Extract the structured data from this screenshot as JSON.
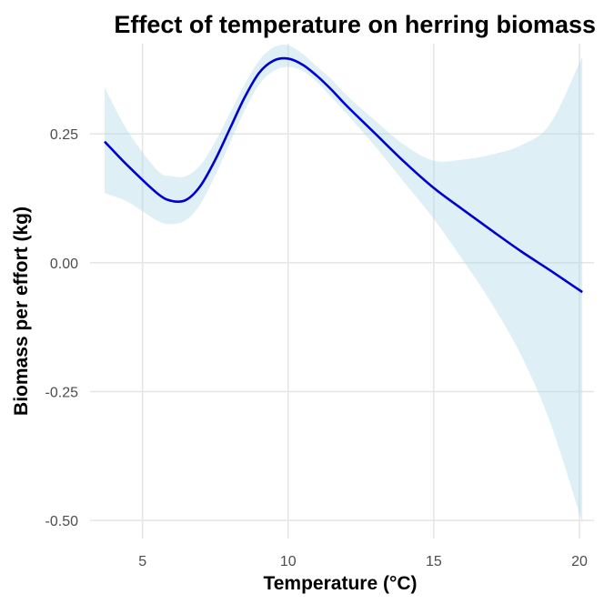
{
  "chart_data": {
    "type": "line",
    "title": "Effect of temperature on herring biomass",
    "xlabel": "Temperature (°C)",
    "ylabel": "Biomass per effort (kg)",
    "xlim": [
      3.2,
      20.5
    ],
    "ylim": [
      -0.535,
      0.425
    ],
    "x_ticks": [
      5,
      10,
      15,
      20
    ],
    "x_tick_labels": [
      "5",
      "10",
      "15",
      "20"
    ],
    "y_ticks": [
      -0.5,
      -0.25,
      0.0,
      0.25
    ],
    "y_tick_labels": [
      "-0.50",
      "-0.25",
      "0.00",
      "0.25"
    ],
    "grid": true,
    "legend": "none",
    "colors": {
      "line": "#0000cd",
      "ribbon": "#add8e6",
      "ribbon_opacity": 0.4,
      "grid": "#e6e6e6"
    },
    "series": [
      {
        "x": [
          3.7,
          4.5,
          5.5,
          6.0,
          6.5,
          7.0,
          7.5,
          8.0,
          8.5,
          9.0,
          9.5,
          10.0,
          10.5,
          11.0,
          11.5,
          12.0,
          13.0,
          14.0,
          15.0,
          16.0,
          17.0,
          18.0,
          19.0,
          20.1
        ],
        "y": [
          0.235,
          0.188,
          0.135,
          0.12,
          0.122,
          0.15,
          0.2,
          0.26,
          0.32,
          0.368,
          0.392,
          0.396,
          0.384,
          0.362,
          0.335,
          0.305,
          0.25,
          0.195,
          0.145,
          0.103,
          0.062,
          0.022,
          -0.015,
          -0.057
        ],
        "lower": [
          0.135,
          0.118,
          0.082,
          0.075,
          0.083,
          0.115,
          0.17,
          0.232,
          0.295,
          0.345,
          0.372,
          0.38,
          0.372,
          0.35,
          0.32,
          0.29,
          0.225,
          0.155,
          0.085,
          0.005,
          -0.08,
          -0.18,
          -0.31,
          -0.505
        ],
        "upper": [
          0.34,
          0.255,
          0.18,
          0.168,
          0.168,
          0.19,
          0.235,
          0.29,
          0.345,
          0.392,
          0.418,
          0.422,
          0.405,
          0.38,
          0.355,
          0.325,
          0.275,
          0.228,
          0.198,
          0.2,
          0.21,
          0.228,
          0.27,
          0.4
        ]
      }
    ]
  }
}
